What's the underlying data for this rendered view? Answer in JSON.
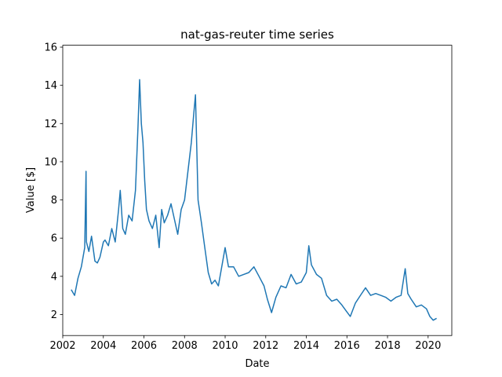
{
  "chart_data": {
    "type": "line",
    "title": "nat-gas-reuter time series",
    "xlabel": "Date",
    "ylabel": "Value [$]",
    "xlim": [
      "2002-01-01",
      "2021-03-01"
    ],
    "ylim": [
      0.9,
      16.1
    ],
    "x_ticks": [
      "2002",
      "2004",
      "2006",
      "2008",
      "2010",
      "2012",
      "2014",
      "2016",
      "2018",
      "2020"
    ],
    "y_ticks": [
      2,
      4,
      6,
      8,
      10,
      12,
      14,
      16
    ],
    "grid": false,
    "legend": "none",
    "colors": {
      "series": "#1f77b4"
    },
    "series": [
      {
        "name": "",
        "x": [
          "2002-06-01",
          "2002-08-01",
          "2002-10-01",
          "2002-12-01",
          "2003-02-01",
          "2003-02-25",
          "2003-03-01",
          "2003-04-15",
          "2003-06-01",
          "2003-08-01",
          "2003-09-15",
          "2003-11-01",
          "2004-01-01",
          "2004-02-01",
          "2004-04-01",
          "2004-06-01",
          "2004-08-01",
          "2004-10-01",
          "2004-11-01",
          "2004-12-15",
          "2005-02-01",
          "2005-04-01",
          "2005-06-01",
          "2005-08-01",
          "2005-09-15",
          "2005-10-15",
          "2005-11-15",
          "2005-12-15",
          "2006-01-15",
          "2006-02-15",
          "2006-04-01",
          "2006-06-01",
          "2006-08-01",
          "2006-10-01",
          "2006-11-15",
          "2007-01-01",
          "2007-03-01",
          "2007-05-01",
          "2007-07-01",
          "2007-09-01",
          "2007-11-01",
          "2008-01-01",
          "2008-03-01",
          "2008-05-01",
          "2008-06-15",
          "2008-07-15",
          "2008-09-01",
          "2008-11-01",
          "2009-01-01",
          "2009-03-01",
          "2009-05-01",
          "2009-07-01",
          "2009-09-01",
          "2009-11-01",
          "2010-01-01",
          "2010-03-01",
          "2010-06-01",
          "2010-09-01",
          "2010-12-01",
          "2011-03-01",
          "2011-06-01",
          "2011-09-01",
          "2011-12-01",
          "2012-02-01",
          "2012-04-15",
          "2012-07-01",
          "2012-10-01",
          "2013-01-01",
          "2013-04-01",
          "2013-07-01",
          "2013-10-01",
          "2014-01-01",
          "2014-02-15",
          "2014-04-01",
          "2014-07-01",
          "2014-10-01",
          "2015-01-01",
          "2015-04-01",
          "2015-07-01",
          "2015-10-01",
          "2015-12-15",
          "2016-03-01",
          "2016-06-01",
          "2016-09-01",
          "2016-12-01",
          "2017-03-01",
          "2017-06-01",
          "2017-09-01",
          "2017-12-01",
          "2018-03-01",
          "2018-06-01",
          "2018-09-01",
          "2018-11-15",
          "2019-01-01",
          "2019-03-01",
          "2019-06-01",
          "2019-09-01",
          "2019-12-01",
          "2020-02-01",
          "2020-04-01",
          "2020-06-01"
        ],
        "y": [
          3.3,
          3.0,
          3.9,
          4.5,
          5.5,
          9.5,
          5.8,
          5.3,
          6.1,
          4.8,
          4.7,
          5.0,
          5.8,
          5.9,
          5.6,
          6.5,
          5.8,
          7.5,
          8.5,
          6.5,
          6.2,
          7.2,
          6.9,
          8.5,
          11.8,
          14.3,
          12.0,
          11.0,
          9.0,
          7.5,
          6.9,
          6.5,
          7.2,
          5.5,
          7.5,
          6.8,
          7.2,
          7.8,
          7.0,
          6.2,
          7.5,
          8.0,
          9.5,
          11.0,
          12.5,
          13.5,
          8.0,
          6.8,
          5.5,
          4.2,
          3.6,
          3.8,
          3.5,
          4.5,
          5.5,
          4.5,
          4.5,
          4.0,
          4.1,
          4.2,
          4.5,
          4.0,
          3.5,
          2.8,
          2.1,
          2.9,
          3.5,
          3.4,
          4.1,
          3.6,
          3.7,
          4.2,
          5.6,
          4.6,
          4.1,
          3.9,
          3.0,
          2.7,
          2.8,
          2.5,
          2.2,
          1.9,
          2.6,
          3.0,
          3.4,
          3.0,
          3.1,
          3.0,
          2.9,
          2.7,
          2.9,
          3.0,
          4.4,
          3.1,
          2.8,
          2.4,
          2.5,
          2.3,
          1.9,
          1.7,
          1.8
        ]
      }
    ]
  }
}
